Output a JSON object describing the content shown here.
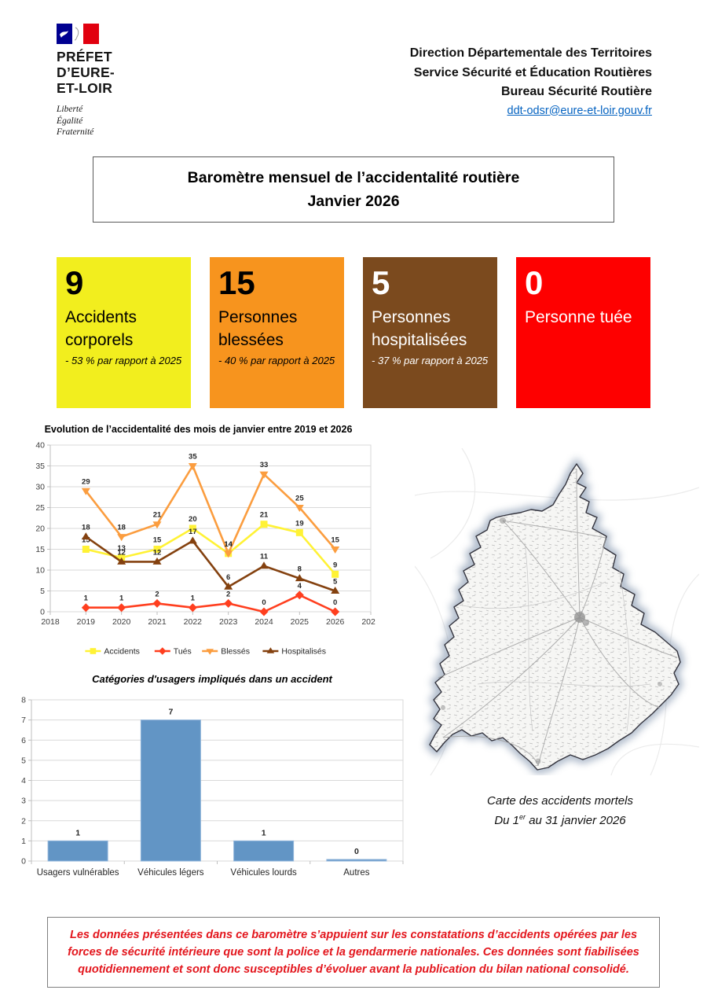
{
  "logo": {
    "line1": "PRÉFET",
    "line2": "D’EURE-",
    "line3": "ET-LOIR",
    "motto1": "Liberté",
    "motto2": "Égalité",
    "motto3": "Fraternité"
  },
  "header": {
    "lines": [
      "Direction Départementale des Territoires",
      "Service Sécurité et Éducation Routières",
      "Bureau Sécurité Routière"
    ],
    "email": "ddt-odsr@eure-et-loir.gouv.fr"
  },
  "title": {
    "line1": "Baromètre mensuel de l’accidentalité routière",
    "line2": "Janvier 2026"
  },
  "stats": [
    {
      "value": "9",
      "label": "Accidents corporels",
      "delta": "- 53 % par rapport à 2025",
      "bg": "#f2ee1e",
      "fg": "#000000"
    },
    {
      "value": "15",
      "label": "Personnes blessées",
      "delta": "- 40 % par rapport à 2025",
      "bg": "#f7941e",
      "fg": "#000000"
    },
    {
      "value": "5",
      "label": "Personnes hospitalisées",
      "delta": "- 37 % par rapport à 2025",
      "bg": "#7b4a1e",
      "fg": "#ffffff"
    },
    {
      "value": "0",
      "label": "Personne tuée",
      "delta": "",
      "bg": "#fe0000",
      "fg": "#ffffff"
    }
  ],
  "chart_data": [
    {
      "type": "line",
      "title": "Evolution de l’accidentalité des mois de janvier entre 2019 et 2026",
      "x": [
        2019,
        2020,
        2021,
        2022,
        2023,
        2024,
        2025,
        2026
      ],
      "xlim": [
        2018,
        2027
      ],
      "ylim": [
        0,
        40
      ],
      "ytick_step": 5,
      "grid": true,
      "legend_position": "bottom",
      "series": [
        {
          "name": "Accidents",
          "marker": "square",
          "color": "#fff235",
          "values": [
            15,
            13,
            15,
            20,
            14,
            21,
            19,
            9
          ]
        },
        {
          "name": "Tués",
          "marker": "diamond",
          "color": "#ff3f1f",
          "values": [
            1,
            1,
            2,
            1,
            2,
            0,
            4,
            0
          ]
        },
        {
          "name": "Blessés",
          "marker": "triangle-down",
          "color": "#fb9d3f",
          "values": [
            29,
            18,
            21,
            35,
            14,
            33,
            25,
            15
          ]
        },
        {
          "name": "Hospitalisés",
          "marker": "triangle-up",
          "color": "#84410f",
          "values": [
            18,
            12,
            12,
            17,
            6,
            11,
            8,
            5
          ]
        }
      ]
    },
    {
      "type": "bar",
      "title": "Catégories d'usagers impliqués dans un accident",
      "categories": [
        "Usagers vulnérables",
        "Véhicules légers",
        "Véhicules lourds",
        "Autres"
      ],
      "values": [
        1,
        7,
        1,
        0
      ],
      "ylim": [
        0,
        8
      ],
      "ytick_step": 1,
      "grid": true,
      "bar_color": "#6295c5",
      "bar_border": "#8fb4da"
    }
  ],
  "map": {
    "caption_line1": "Carte des accidents mortels",
    "caption_line2_pre": "Du 1",
    "caption_line2_sup": "er",
    "caption_line2_post": " au 31 janvier 2026"
  },
  "disclaimer": "Les données présentées dans ce baromètre s’appuient sur les constatations d’accidents opérées par les forces de sécurité intérieure que sont la police et la gendarmerie nationales. Ces données sont fiabilisées quotidiennement et sont donc susceptibles d’évoluer avant la publication du bilan national consolidé."
}
